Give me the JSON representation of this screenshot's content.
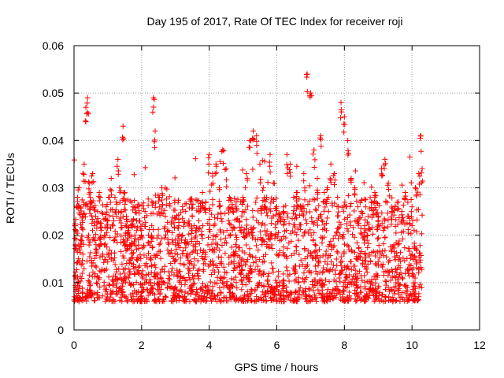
{
  "chart_data": {
    "type": "scatter",
    "title": "Day 195 of 2017, Rate Of TEC Index for receiver roji",
    "xlabel": "GPS time / hours",
    "ylabel": "ROTI / TECUs",
    "xlim": [
      0,
      12
    ],
    "ylim": [
      0,
      0.06
    ],
    "xticks": [
      0,
      2,
      4,
      6,
      8,
      10,
      12
    ],
    "xtick_labels": [
      "0",
      "2",
      "4",
      "6",
      "8",
      "10",
      "12"
    ],
    "yticks": [
      0,
      0.01,
      0.02,
      0.03,
      0.04,
      0.05,
      0.06
    ],
    "ytick_labels": [
      "0",
      "0.01",
      "0.02",
      "0.03",
      "0.04",
      "0.05",
      "0.06"
    ],
    "grid": true,
    "marker": "+",
    "color": "#ff0000",
    "data_range_x": [
      0,
      10.3
    ],
    "series": [
      {
        "name": "ROTI",
        "notes": "dense cloud of points mostly between 0.005 and 0.03 TECU/min across 0-10.3 h",
        "x": [
          0.05,
          0.1,
          0.15,
          0.2,
          0.25,
          0.3,
          0.35,
          0.4,
          0.45,
          0.5,
          0.55,
          0.6,
          0.65,
          0.7,
          0.75,
          0.8,
          0.85,
          0.9,
          0.95,
          1.0,
          1.05,
          1.1,
          1.15,
          1.2,
          1.25,
          1.3,
          1.35,
          1.4,
          1.45,
          1.5,
          1.55,
          1.6,
          1.65,
          1.7,
          1.75,
          1.8,
          1.85,
          1.9,
          1.95,
          2.0,
          2.1,
          2.2,
          2.3,
          2.35,
          2.4,
          2.5,
          2.6,
          2.7,
          2.8,
          2.9,
          3.0,
          3.1,
          3.2,
          3.3,
          3.4,
          3.5,
          3.6,
          3.7,
          3.8,
          3.9,
          4.0,
          4.1,
          4.2,
          4.3,
          4.4,
          4.5,
          4.6,
          4.7,
          4.8,
          4.9,
          5.0,
          5.1,
          5.2,
          5.3,
          5.4,
          5.5,
          5.6,
          5.7,
          5.8,
          5.9,
          6.0,
          6.1,
          6.2,
          6.3,
          6.4,
          6.5,
          6.6,
          6.7,
          6.8,
          6.9,
          7.0,
          7.1,
          7.2,
          7.3,
          7.4,
          7.5,
          7.6,
          7.7,
          7.8,
          7.9,
          8.0,
          8.1,
          8.2,
          8.3,
          8.4,
          8.5,
          8.6,
          8.7,
          8.8,
          8.9,
          9.0,
          9.1,
          9.2,
          9.3,
          9.4,
          9.5,
          9.6,
          9.7,
          9.8,
          9.9,
          10.0,
          10.1,
          10.2,
          10.25,
          10.3
        ],
        "y": [
          0.021,
          0.028,
          0.03,
          0.019,
          0.024,
          0.035,
          0.047,
          0.049,
          0.031,
          0.027,
          0.033,
          0.022,
          0.018,
          0.025,
          0.029,
          0.021,
          0.016,
          0.02,
          0.026,
          0.023,
          0.028,
          0.032,
          0.024,
          0.019,
          0.027,
          0.036,
          0.03,
          0.025,
          0.043,
          0.029,
          0.024,
          0.021,
          0.018,
          0.022,
          0.026,
          0.02,
          0.017,
          0.019,
          0.023,
          0.021,
          0.025,
          0.02,
          0.022,
          0.049,
          0.042,
          0.028,
          0.03,
          0.024,
          0.021,
          0.019,
          0.018,
          0.022,
          0.02,
          0.019,
          0.023,
          0.024,
          0.021,
          0.025,
          0.029,
          0.027,
          0.037,
          0.033,
          0.035,
          0.03,
          0.038,
          0.034,
          0.028,
          0.025,
          0.027,
          0.023,
          0.028,
          0.033,
          0.04,
          0.042,
          0.041,
          0.035,
          0.03,
          0.028,
          0.037,
          0.031,
          0.026,
          0.024,
          0.025,
          0.037,
          0.035,
          0.028,
          0.029,
          0.026,
          0.033,
          0.054,
          0.05,
          0.038,
          0.032,
          0.041,
          0.029,
          0.03,
          0.035,
          0.033,
          0.028,
          0.048,
          0.045,
          0.04,
          0.032,
          0.03,
          0.026,
          0.025,
          0.022,
          0.024,
          0.027,
          0.029,
          0.024,
          0.034,
          0.036,
          0.031,
          0.025,
          0.026,
          0.027,
          0.025,
          0.029,
          0.024,
          0.026,
          0.03,
          0.033,
          0.041,
          0.034
        ]
      }
    ]
  }
}
